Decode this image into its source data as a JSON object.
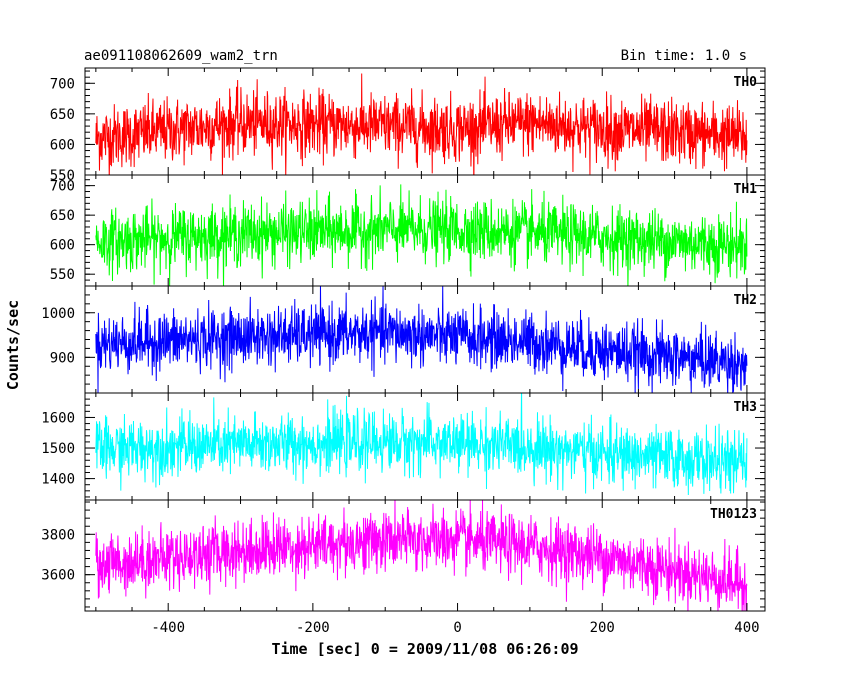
{
  "header": {
    "left": "ae091108062609_wam2_trn",
    "right": "Bin time: 1.0 s"
  },
  "chart_data": {
    "type": "line",
    "xlabel": "Time [sec] 0 = 2009/11/08 06:26:09",
    "ylabel": "Counts/sec",
    "xlim": [
      -515,
      425
    ],
    "x_range": [
      -500,
      400
    ],
    "xticks": [
      -400,
      -200,
      0,
      200,
      400
    ],
    "bin_time_s": 1.0,
    "panels": [
      {
        "label": "TH0",
        "color": "#ff0000",
        "ylim": [
          550,
          725
        ],
        "yticks": [
          550,
          600,
          650,
          700
        ],
        "shape": [
          [
            -500,
            610
          ],
          [
            -300,
            635
          ],
          [
            -100,
            630
          ],
          [
            0,
            625
          ],
          [
            100,
            635
          ],
          [
            200,
            625
          ],
          [
            300,
            620
          ],
          [
            400,
            612
          ]
        ],
        "amplitude": 26
      },
      {
        "label": "TH1",
        "color": "#00ff00",
        "ylim": [
          530,
          718
        ],
        "yticks": [
          550,
          600,
          650,
          700
        ],
        "shape": [
          [
            -500,
            605
          ],
          [
            -300,
            618
          ],
          [
            -100,
            625
          ],
          [
            0,
            625
          ],
          [
            100,
            620
          ],
          [
            200,
            612
          ],
          [
            300,
            605
          ],
          [
            400,
            598
          ]
        ],
        "amplitude": 26
      },
      {
        "label": "TH2",
        "color": "#0000ff",
        "ylim": [
          820,
          1060
        ],
        "yticks": [
          900,
          1000
        ],
        "shape": [
          [
            -500,
            930
          ],
          [
            -300,
            945
          ],
          [
            -100,
            955
          ],
          [
            0,
            945
          ],
          [
            100,
            935
          ],
          [
            200,
            915
          ],
          [
            300,
            900
          ],
          [
            400,
            885
          ]
        ],
        "amplitude": 33
      },
      {
        "label": "TH3",
        "color": "#00ffff",
        "ylim": [
          1330,
          1680
        ],
        "yticks": [
          1400,
          1500,
          1600
        ],
        "shape": [
          [
            -500,
            1495
          ],
          [
            -300,
            1510
          ],
          [
            -100,
            1520
          ],
          [
            0,
            1515
          ],
          [
            100,
            1505
          ],
          [
            200,
            1480
          ],
          [
            300,
            1465
          ],
          [
            400,
            1450
          ]
        ],
        "amplitude": 48
      },
      {
        "label": "TH0123",
        "color": "#ff00ff",
        "ylim": [
          3420,
          3970
        ],
        "yticks": [
          3600,
          3800
        ],
        "shape": [
          [
            -500,
            3650
          ],
          [
            -300,
            3720
          ],
          [
            -100,
            3770
          ],
          [
            0,
            3770
          ],
          [
            100,
            3740
          ],
          [
            200,
            3690
          ],
          [
            300,
            3620
          ],
          [
            400,
            3550
          ]
        ],
        "amplitude": 75
      }
    ]
  }
}
